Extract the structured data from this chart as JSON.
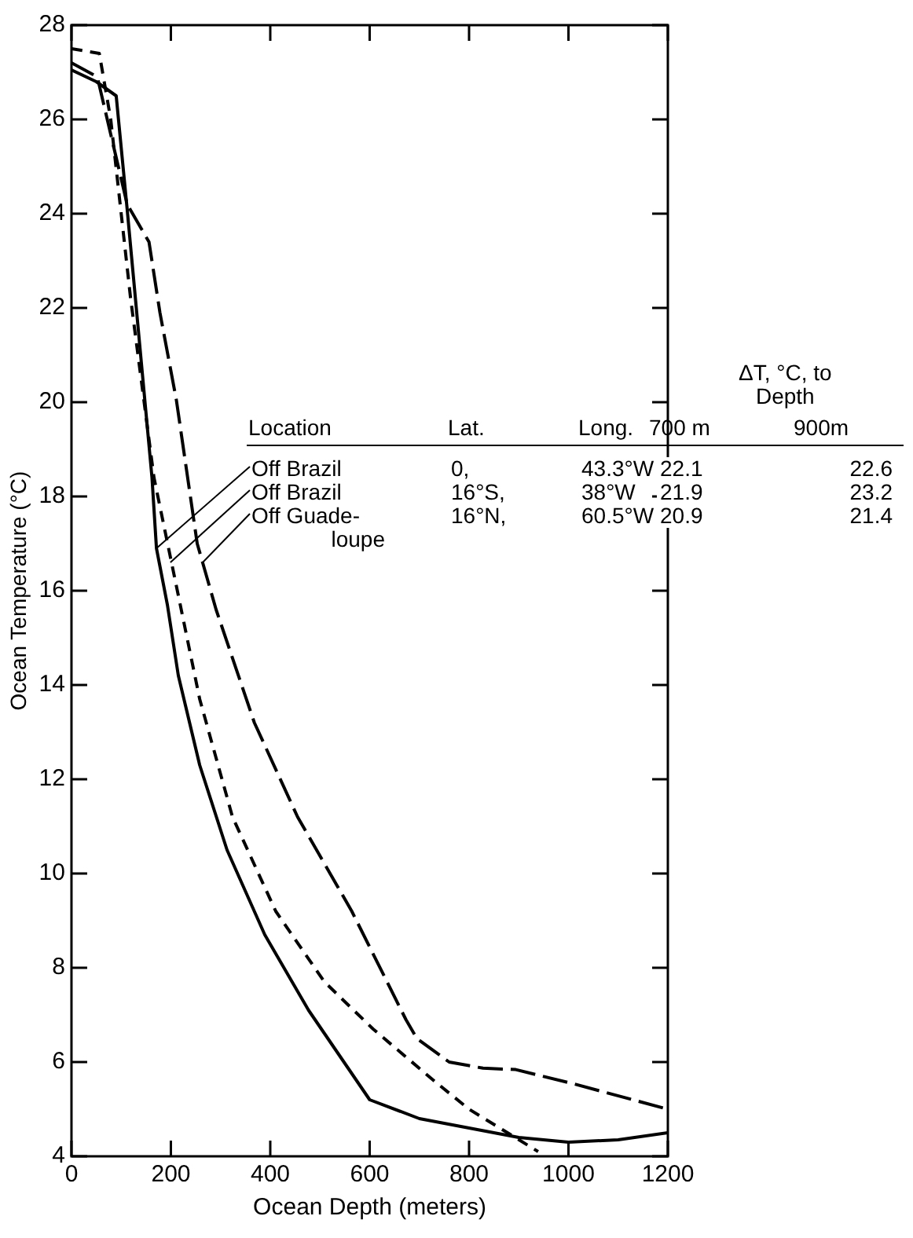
{
  "chart_data": {
    "type": "line",
    "xlabel": "Ocean Depth (meters)",
    "ylabel": "Ocean Temperature (°C)",
    "xlim": [
      0,
      1200
    ],
    "xticks": [
      0,
      200,
      400,
      600,
      800,
      1000,
      1200
    ],
    "ylim": [
      4,
      28
    ],
    "yticks": [
      4,
      6,
      8,
      10,
      12,
      14,
      16,
      18,
      20,
      22,
      24,
      26,
      28
    ],
    "grid": false,
    "legend": false,
    "marker": "none",
    "annotations": [
      "ΔT, °C, to Depth",
      "Location",
      "Lat.",
      "Long.",
      "700 m",
      "900m",
      {
        "text": "Off Brazil",
        "x": 171,
        "y": 16.9
      },
      "0,",
      "43.3°W",
      "22.1",
      "22.6",
      {
        "text": "Off Brazil",
        "x": 199,
        "y": 16.6
      },
      "16°S,",
      "38°W",
      "21.9",
      "23.2",
      {
        "text": "Off Guade-\nloupe",
        "x": 264,
        "y": 16.6
      },
      "16°N,",
      "60.5°W",
      "20.9",
      "21.4"
    ],
    "series": [
      {
        "color": "#000000",
        "line_style": "solid",
        "x": [
          0,
          50,
          90,
          112,
          162,
          171,
          193,
          215,
          258,
          313,
          389,
          477,
          600,
          700,
          800,
          900,
          1000,
          1100,
          1200
        ],
        "values": [
          27.05,
          26.8,
          26.5,
          24.1,
          18.4,
          16.9,
          15.7,
          14.2,
          12.3,
          10.5,
          8.7,
          7.1,
          5.2,
          4.8,
          4.6,
          4.4,
          4.3,
          4.35,
          4.5
        ]
      },
      {
        "color": "#000000",
        "line_style": "dashed",
        "x": [
          0,
          56,
          79,
          119,
          166,
          215,
          258,
          324,
          411,
          509,
          607,
          732,
          800,
          939
        ],
        "values": [
          27.5,
          27.4,
          26.0,
          22.2,
          18.4,
          15.9,
          13.7,
          11.2,
          9.2,
          7.7,
          6.7,
          5.58,
          5.0,
          4.1
        ]
      },
      {
        "color": "#000000",
        "line_style": "dashed",
        "x": [
          0,
          52,
          112,
          156,
          178,
          211,
          231,
          253,
          291,
          368,
          455,
          564,
          673,
          695,
          760,
          828,
          894,
          1006,
          1200
        ],
        "values": [
          27.2,
          26.9,
          24.2,
          23.4,
          21.9,
          20.05,
          18.6,
          17.0,
          15.6,
          13.2,
          11.2,
          9.2,
          6.9,
          6.5,
          6.0,
          5.87,
          5.84,
          5.55,
          5.0
        ]
      }
    ]
  }
}
